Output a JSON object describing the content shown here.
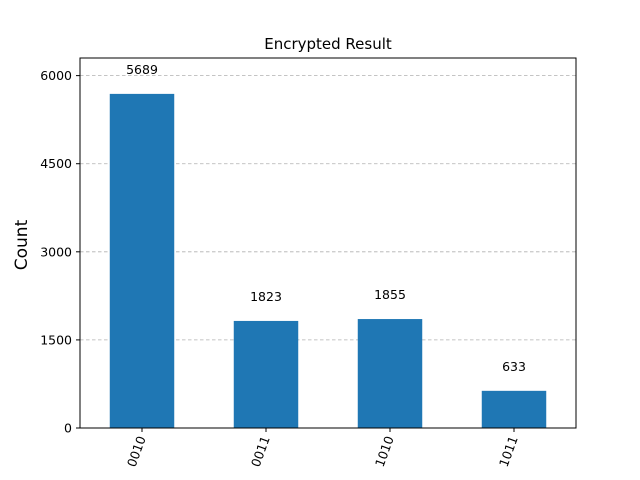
{
  "chart_data": {
    "type": "bar",
    "title": "Encrypted Result",
    "xlabel": "",
    "ylabel": "Count",
    "categories": [
      "0010",
      "0011",
      "1010",
      "1011"
    ],
    "values": [
      5689,
      1823,
      1855,
      633
    ],
    "data_labels": [
      "5689",
      "1823",
      "1855",
      "633"
    ],
    "ylim": [
      0,
      6300
    ],
    "yticks": [
      0,
      1500,
      3000,
      4500,
      6000
    ],
    "ytick_labels": [
      "0",
      "1500",
      "3000",
      "4500",
      "6000"
    ],
    "grid": "horizontal dashed",
    "bar_color": "#1f77b4",
    "grid_color": "#b0b0b0",
    "x_tick_rotation": "70 degrees"
  }
}
